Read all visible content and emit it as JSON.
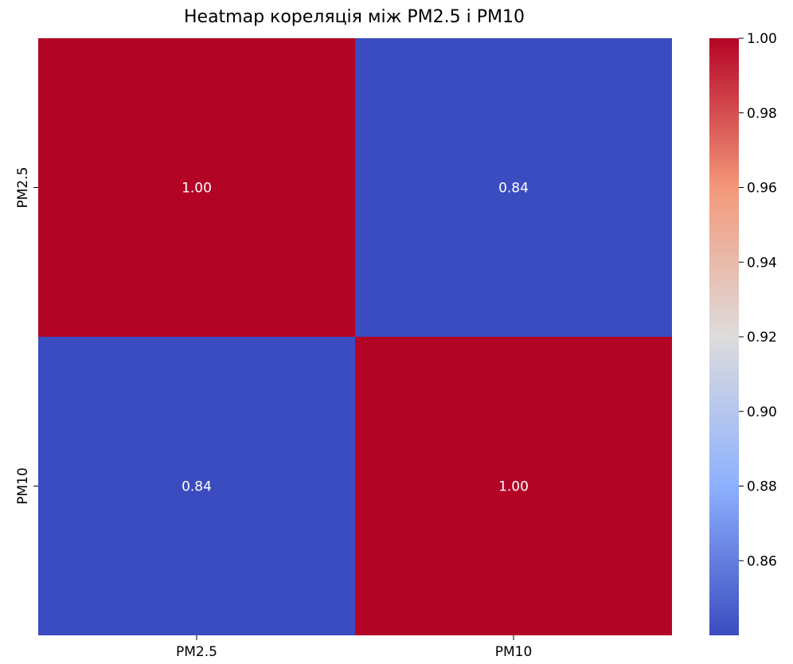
{
  "chart_data": {
    "type": "heatmap",
    "title": "Heatmap кореляція між PM2.5 і PM10",
    "x_categories": [
      "PM2.5",
      "PM10"
    ],
    "y_categories": [
      "PM2.5",
      "PM10"
    ],
    "values": [
      [
        1.0,
        0.84
      ],
      [
        0.84,
        1.0
      ]
    ],
    "cell_labels": [
      [
        "1.00",
        "0.84"
      ],
      [
        "0.84",
        "1.00"
      ]
    ],
    "colormap": "coolwarm",
    "colors": {
      "low": "#3b4cc0",
      "mid": "#dddcdc",
      "high": "#b40426"
    },
    "colorbar": {
      "range": [
        0.84,
        1.0
      ],
      "ticks": [
        "0.86",
        "0.88",
        "0.90",
        "0.92",
        "0.94",
        "0.96",
        "0.98",
        "1.00"
      ]
    }
  }
}
